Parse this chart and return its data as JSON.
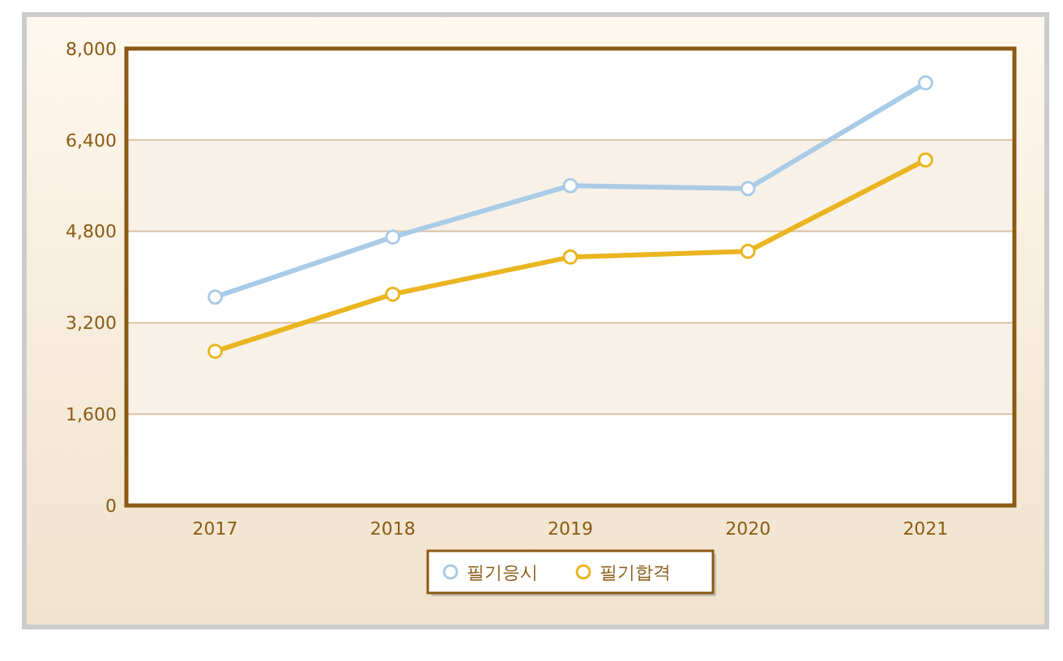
{
  "chart_data": {
    "type": "line",
    "categories": [
      "2017",
      "2018",
      "2019",
      "2020",
      "2021"
    ],
    "series": [
      {
        "name": "필기응시",
        "color": "#a9cbe6",
        "values": [
          3650,
          4700,
          5600,
          5550,
          7400
        ]
      },
      {
        "name": "필기합격",
        "color": "#eab520",
        "values": [
          2700,
          3700,
          4350,
          4450,
          6050
        ]
      }
    ],
    "ylim": [
      0,
      8000
    ],
    "yticks": [
      0,
      {
        "value": 1600,
        "label": "1,600"
      },
      {
        "value": 3200,
        "label": "3,200"
      },
      {
        "value": 4800,
        "label": "4,800"
      },
      {
        "value": 6400,
        "label": "6,400"
      },
      {
        "value": 8000,
        "label": "8,000"
      }
    ],
    "grid": "y",
    "legend": "bottom",
    "marker": "circle",
    "line_style": "solid"
  }
}
